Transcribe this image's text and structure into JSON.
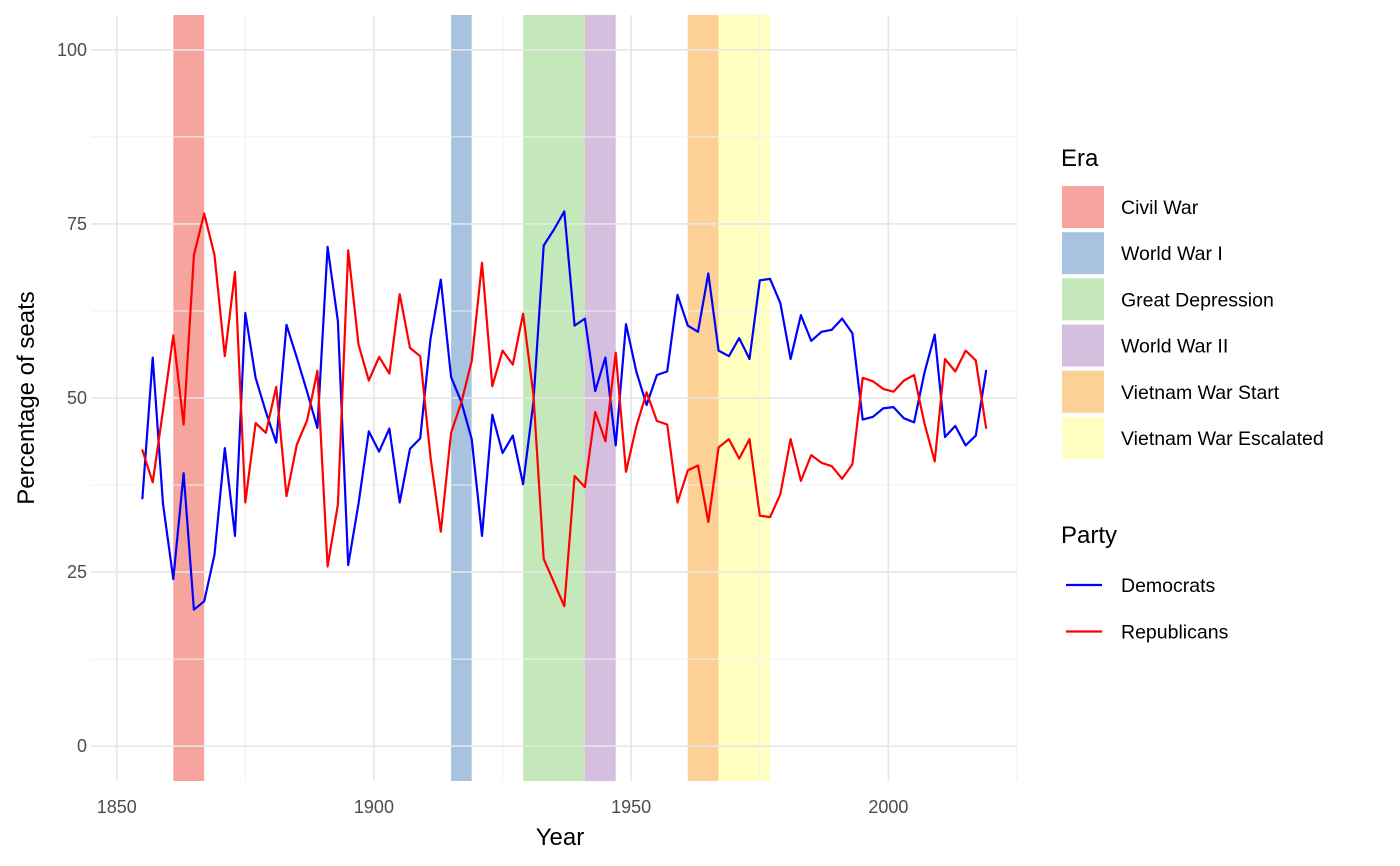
{
  "chart_data": {
    "type": "line",
    "xlabel": "Year",
    "ylabel": "Percentage of seats",
    "xlim": [
      1845,
      2025
    ],
    "ylim": [
      -5,
      105
    ],
    "x_ticks": [
      1850,
      1900,
      1950,
      2000
    ],
    "x_minor": [
      1875,
      1925,
      1975,
      2025
    ],
    "y_ticks": [
      0,
      25,
      50,
      75,
      100
    ],
    "y_minor": [
      12.5,
      37.5,
      62.5,
      87.5
    ],
    "grid": true,
    "legend_position": "right",
    "era_legend": {
      "title": "Era",
      "items": [
        {
          "label": "Civil War",
          "start": 1861,
          "end": 1867,
          "color": "#F8A49E"
        },
        {
          "label": "World War I",
          "start": 1915,
          "end": 1919,
          "color": "#A7C3DF"
        },
        {
          "label": "Great Depression",
          "start": 1929,
          "end": 1941,
          "color": "#C5E8BB"
        },
        {
          "label": "World War II",
          "start": 1941,
          "end": 1947,
          "color": "#D6BFDE"
        },
        {
          "label": "Vietnam War Start",
          "start": 1961,
          "end": 1967,
          "color": "#FDD195"
        },
        {
          "label": "Vietnam War Escalated",
          "start": 1967,
          "end": 1977,
          "color": "#FFFFC2"
        }
      ]
    },
    "party_legend": {
      "title": "Party",
      "items": [
        {
          "label": "Democrats",
          "color": "#0000FF"
        },
        {
          "label": "Republicans",
          "color": "#FF0000"
        }
      ]
    },
    "x": [
      1855,
      1857,
      1859,
      1861,
      1863,
      1865,
      1867,
      1869,
      1871,
      1873,
      1875,
      1877,
      1879,
      1881,
      1883,
      1885,
      1887,
      1889,
      1891,
      1893,
      1895,
      1897,
      1899,
      1901,
      1903,
      1905,
      1907,
      1909,
      1911,
      1913,
      1915,
      1917,
      1919,
      1921,
      1923,
      1925,
      1927,
      1929,
      1931,
      1933,
      1935,
      1937,
      1939,
      1941,
      1943,
      1945,
      1947,
      1949,
      1951,
      1953,
      1955,
      1957,
      1959,
      1961,
      1963,
      1965,
      1967,
      1969,
      1971,
      1973,
      1975,
      1977,
      1979,
      1981,
      1983,
      1985,
      1987,
      1989,
      1991,
      1993,
      1995,
      1997,
      1999,
      2001,
      2003,
      2005,
      2007,
      2009,
      2011,
      2013,
      2015,
      2017,
      2019
    ],
    "series": [
      {
        "name": "Democrats",
        "color": "#0000FF",
        "values": [
          35.6,
          55.8,
          34.8,
          24.0,
          39.2,
          19.6,
          20.8,
          27.5,
          42.8,
          30.2,
          62.2,
          52.9,
          48.0,
          43.6,
          60.5,
          55.8,
          50.9,
          45.7,
          71.7,
          61.0,
          26.0,
          34.8,
          45.2,
          42.3,
          45.6,
          35.0,
          42.7,
          44.2,
          58.5,
          67.0,
          53.0,
          49.4,
          44.1,
          30.2,
          47.6,
          42.1,
          44.6,
          37.6,
          49.4,
          71.9,
          74.2,
          76.8,
          60.4,
          61.4,
          51.0,
          55.8,
          43.2,
          60.6,
          53.8,
          49.0,
          53.3,
          53.8,
          64.8,
          60.4,
          59.5,
          67.9,
          56.8,
          56.0,
          58.6,
          55.6,
          66.9,
          67.1,
          63.6,
          55.6,
          61.9,
          58.2,
          59.5,
          59.8,
          61.4,
          59.3,
          46.9,
          47.3,
          48.5,
          48.7,
          47.1,
          46.5,
          53.6,
          59.1,
          44.4,
          46.0,
          43.2,
          44.6,
          53.9
        ]
      },
      {
        "name": "Republicans",
        "color": "#FF0000",
        "values": [
          42.5,
          37.9,
          48.2,
          59.0,
          46.2,
          70.5,
          76.5,
          70.5,
          56.0,
          68.1,
          35.0,
          46.4,
          45.0,
          51.6,
          35.9,
          43.3,
          46.8,
          53.9,
          25.8,
          34.7,
          71.2,
          57.7,
          52.5,
          55.9,
          53.5,
          64.9,
          57.2,
          56.0,
          41.5,
          30.8,
          45.0,
          49.4,
          55.3,
          69.4,
          51.7,
          56.8,
          54.8,
          62.1,
          50.5,
          26.9,
          23.5,
          20.1,
          38.8,
          37.2,
          48.0,
          43.8,
          56.5,
          39.4,
          45.9,
          50.8,
          46.7,
          46.2,
          35.0,
          39.6,
          40.3,
          32.2,
          42.9,
          44.1,
          41.3,
          44.1,
          33.1,
          32.9,
          36.2,
          44.1,
          38.1,
          41.8,
          40.7,
          40.2,
          38.4,
          40.5,
          52.9,
          52.4,
          51.3,
          50.9,
          52.5,
          53.3,
          46.4,
          40.9,
          55.6,
          53.8,
          56.8,
          55.4,
          45.7
        ]
      }
    ]
  }
}
